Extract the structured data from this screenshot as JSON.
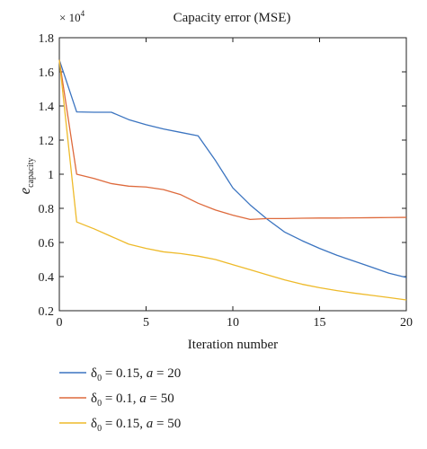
{
  "chart_data": {
    "type": "line",
    "title": "Capacity error (MSE)",
    "xlabel": "Iteration number",
    "ylabel": {
      "main": "e",
      "sub": "capacity"
    },
    "y_multiplier": {
      "base": "× 10",
      "exp": "4"
    },
    "xlim": [
      0,
      20
    ],
    "ylim": [
      0.2,
      1.8
    ],
    "xticks": [
      0,
      5,
      10,
      15,
      20
    ],
    "yticks": [
      0.2,
      0.4,
      0.6,
      0.8,
      1,
      1.2,
      1.4,
      1.6,
      1.8
    ],
    "grid": false,
    "legend_position": "below",
    "series": [
      {
        "name": "δ0 = 0.15, a = 20",
        "legend": {
          "sym": "δ",
          "sub": "0",
          "rest1": " = 0.15, ",
          "var": "a",
          "rest2": " = 20"
        },
        "color": "#3b74c0",
        "x": [
          0,
          1,
          2,
          3,
          4,
          5,
          6,
          7,
          8,
          9,
          10,
          11,
          12,
          13,
          14,
          15,
          16,
          17,
          18,
          19,
          20
        ],
        "y": [
          1.67,
          1.365,
          1.363,
          1.363,
          1.32,
          1.29,
          1.265,
          1.245,
          1.225,
          1.08,
          0.92,
          0.82,
          0.735,
          0.66,
          0.61,
          0.565,
          0.525,
          0.49,
          0.455,
          0.42,
          0.395
        ]
      },
      {
        "name": "δ0 = 0.1, a = 50",
        "legend": {
          "sym": "δ",
          "sub": "0",
          "rest1": " = 0.1, ",
          "var": "a",
          "rest2": " = 50"
        },
        "color": "#de6a3c",
        "x": [
          0,
          1,
          2,
          3,
          4,
          5,
          6,
          7,
          8,
          9,
          10,
          11,
          12,
          13,
          14,
          15,
          16,
          17,
          18,
          19,
          20
        ],
        "y": [
          1.67,
          1.0,
          0.975,
          0.945,
          0.93,
          0.925,
          0.91,
          0.88,
          0.83,
          0.79,
          0.76,
          0.735,
          0.74,
          0.74,
          0.742,
          0.743,
          0.743,
          0.744,
          0.745,
          0.746,
          0.747
        ]
      },
      {
        "name": "δ0 = 0.15, a = 50",
        "legend": {
          "sym": "δ",
          "sub": "0",
          "rest1": " = 0.15, ",
          "var": "a",
          "rest2": " = 50"
        },
        "color": "#eeba2a",
        "x": [
          0,
          1,
          2,
          3,
          4,
          5,
          6,
          7,
          8,
          9,
          10,
          11,
          12,
          13,
          14,
          15,
          16,
          17,
          18,
          19,
          20
        ],
        "y": [
          1.67,
          0.72,
          0.68,
          0.635,
          0.59,
          0.565,
          0.545,
          0.535,
          0.52,
          0.5,
          0.47,
          0.44,
          0.41,
          0.38,
          0.355,
          0.335,
          0.318,
          0.303,
          0.29,
          0.277,
          0.263
        ]
      }
    ]
  }
}
